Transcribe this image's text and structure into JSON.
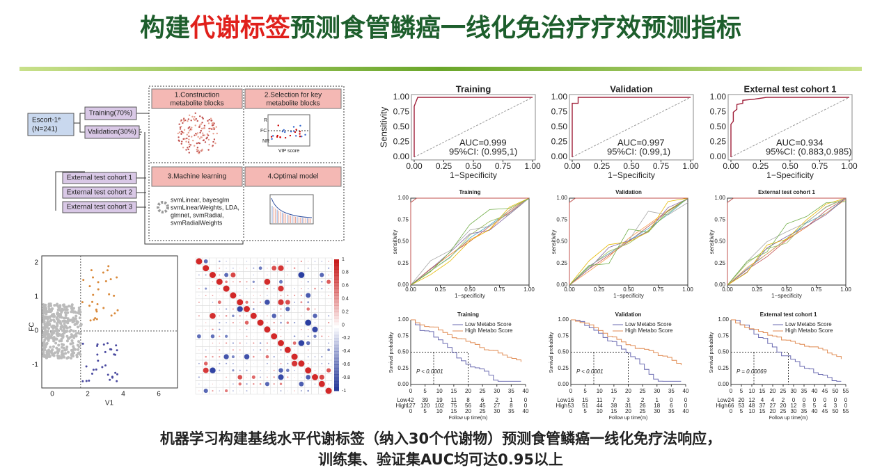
{
  "title": {
    "part1": "构建",
    "part2": "代谢标签",
    "part3": "预测食管鳞癌一线化免治疗疗效预测指标"
  },
  "flow": {
    "cohort": "Escort-1ᵉ",
    "n": "(N=241)",
    "training": "Training(70%)",
    "validation": "Validation(30%)",
    "external": [
      "External test cohort 1",
      "External test cohort 2",
      "External test cohort 3"
    ],
    "steps": [
      [
        "1.Construction",
        "metabolite blocks"
      ],
      [
        "2.Selection for key",
        "metabolite blocks"
      ],
      [
        "3.Machine learning"
      ],
      [
        "4.Optimal model"
      ]
    ],
    "ml_methods": [
      "svmLinear, bayesglm",
      "svmLinearWeights, LDA,",
      "glmnet, svmRadial,",
      "svmRadialWeights"
    ],
    "vip_label": "VIP score",
    "fc_label": "FC",
    "r_label": "R",
    "nr_label": "NR"
  },
  "scatter": {
    "xlabel": "V1",
    "ylabel": "FC",
    "xticks": [
      0,
      2,
      4,
      6
    ],
    "yticks": [
      -1,
      0,
      1,
      2
    ]
  },
  "heatmap": {
    "colorbar_ticks": [
      1,
      0.8,
      0.6,
      0.4,
      0.2,
      0,
      -0.2,
      -0.4,
      -0.6,
      -0.8,
      -1
    ]
  },
  "roc": {
    "ylabel": "Sensitivity",
    "xlabel": "1−Specificity",
    "ticks": [
      {
        "value": 0,
        "label": "0.00"
      },
      {
        "value": 0.25,
        "label": "0.25"
      },
      {
        "value": 0.5,
        "label": "0.50"
      },
      {
        "value": 0.75,
        "label": "0.75"
      },
      {
        "value": 1,
        "label": "1.00"
      }
    ],
    "charts": [
      {
        "title": "Training",
        "auc": "AUC=0.999",
        "ci": "95%CI: (0.995,1)",
        "x": [
          0,
          0,
          0.02,
          0.03,
          1
        ],
        "y": [
          0,
          0.85,
          0.95,
          1,
          1
        ]
      },
      {
        "title": "Validation",
        "auc": "AUC=0.997",
        "ci": "95%CI: (0.99,1)",
        "x": [
          0,
          0,
          0.05,
          0.05,
          1
        ],
        "y": [
          0,
          0.9,
          0.9,
          1,
          1
        ]
      },
      {
        "title": "External test cohort 1",
        "auc": "AUC=0.934",
        "ci": "95%CI: (0.883,0.985)",
        "x": [
          0,
          0,
          0.02,
          0.02,
          0.05,
          0.05,
          0.1,
          0.1,
          0.2,
          0.3,
          0.5,
          1
        ],
        "y": [
          0,
          0.55,
          0.6,
          0.75,
          0.8,
          0.88,
          0.9,
          0.95,
          0.97,
          1,
          1,
          1
        ]
      }
    ]
  },
  "multi_roc": {
    "ylabel": "sensitivity",
    "xlabel": "1−specificity",
    "ticks": [
      {
        "value": 0,
        "label": "0.00"
      },
      {
        "value": 0.25,
        "label": "0.25"
      },
      {
        "value": 0.5,
        "label": "0.50"
      },
      {
        "value": 0.75,
        "label": "0.75"
      },
      {
        "value": 1,
        "label": "1.00"
      }
    ],
    "titles": [
      "Training",
      "Validation",
      "External test cohort 1"
    ]
  },
  "survival": {
    "ylabel": "Survival probability",
    "xlabel": "Follow up time(m)",
    "low": "Low",
    "high": "High",
    "legend": [
      "Low Metabo Score",
      "High Metabo Score"
    ],
    "yticks": [
      {
        "value": 0,
        "label": "0.00"
      },
      {
        "value": 0.25,
        "label": "0.25"
      },
      {
        "value": 0.5,
        "label": "0.50"
      },
      {
        "value": 0.75,
        "label": "0.75"
      },
      {
        "value": 1,
        "label": "1.00"
      }
    ],
    "charts": [
      {
        "title": "Training",
        "p": "P < 0.0001",
        "xticks": [
          0,
          5,
          10,
          15,
          20,
          25,
          30,
          35,
          40
        ],
        "risk_low": [
          42,
          39,
          19,
          11,
          8,
          6,
          2,
          1,
          0
        ],
        "risk_high": [
          127,
          120,
          102,
          75,
          56,
          45,
          27,
          8,
          0
        ]
      },
      {
        "title": "Validation",
        "p": "P < 0.0001",
        "xticks": [
          0,
          5,
          10,
          15,
          20,
          25,
          30,
          35,
          40
        ],
        "risk_low": [
          16,
          15,
          11,
          7,
          3,
          2,
          1,
          0,
          0
        ],
        "risk_high": [
          53,
          51,
          44,
          38,
          31,
          26,
          18,
          6,
          0
        ]
      },
      {
        "title": "External test cohort 1",
        "p": "P = 0.00069",
        "xticks": [
          0,
          5,
          10,
          15,
          20,
          25,
          30,
          35,
          40,
          45,
          50,
          55
        ],
        "risk_low": [
          24,
          20,
          12,
          4,
          4,
          2,
          0,
          0,
          0,
          0,
          0,
          0
        ],
        "risk_high": [
          66,
          53,
          48,
          37,
          27,
          20,
          12,
          8,
          5,
          4,
          3,
          0
        ]
      }
    ]
  },
  "caption": [
    "机器学习构建基线水平代谢标签（纳入30个代谢物）预测食管鳞癌一线化免疗法响应，",
    "训练集、验证集AUC均可达0.95以上"
  ]
}
